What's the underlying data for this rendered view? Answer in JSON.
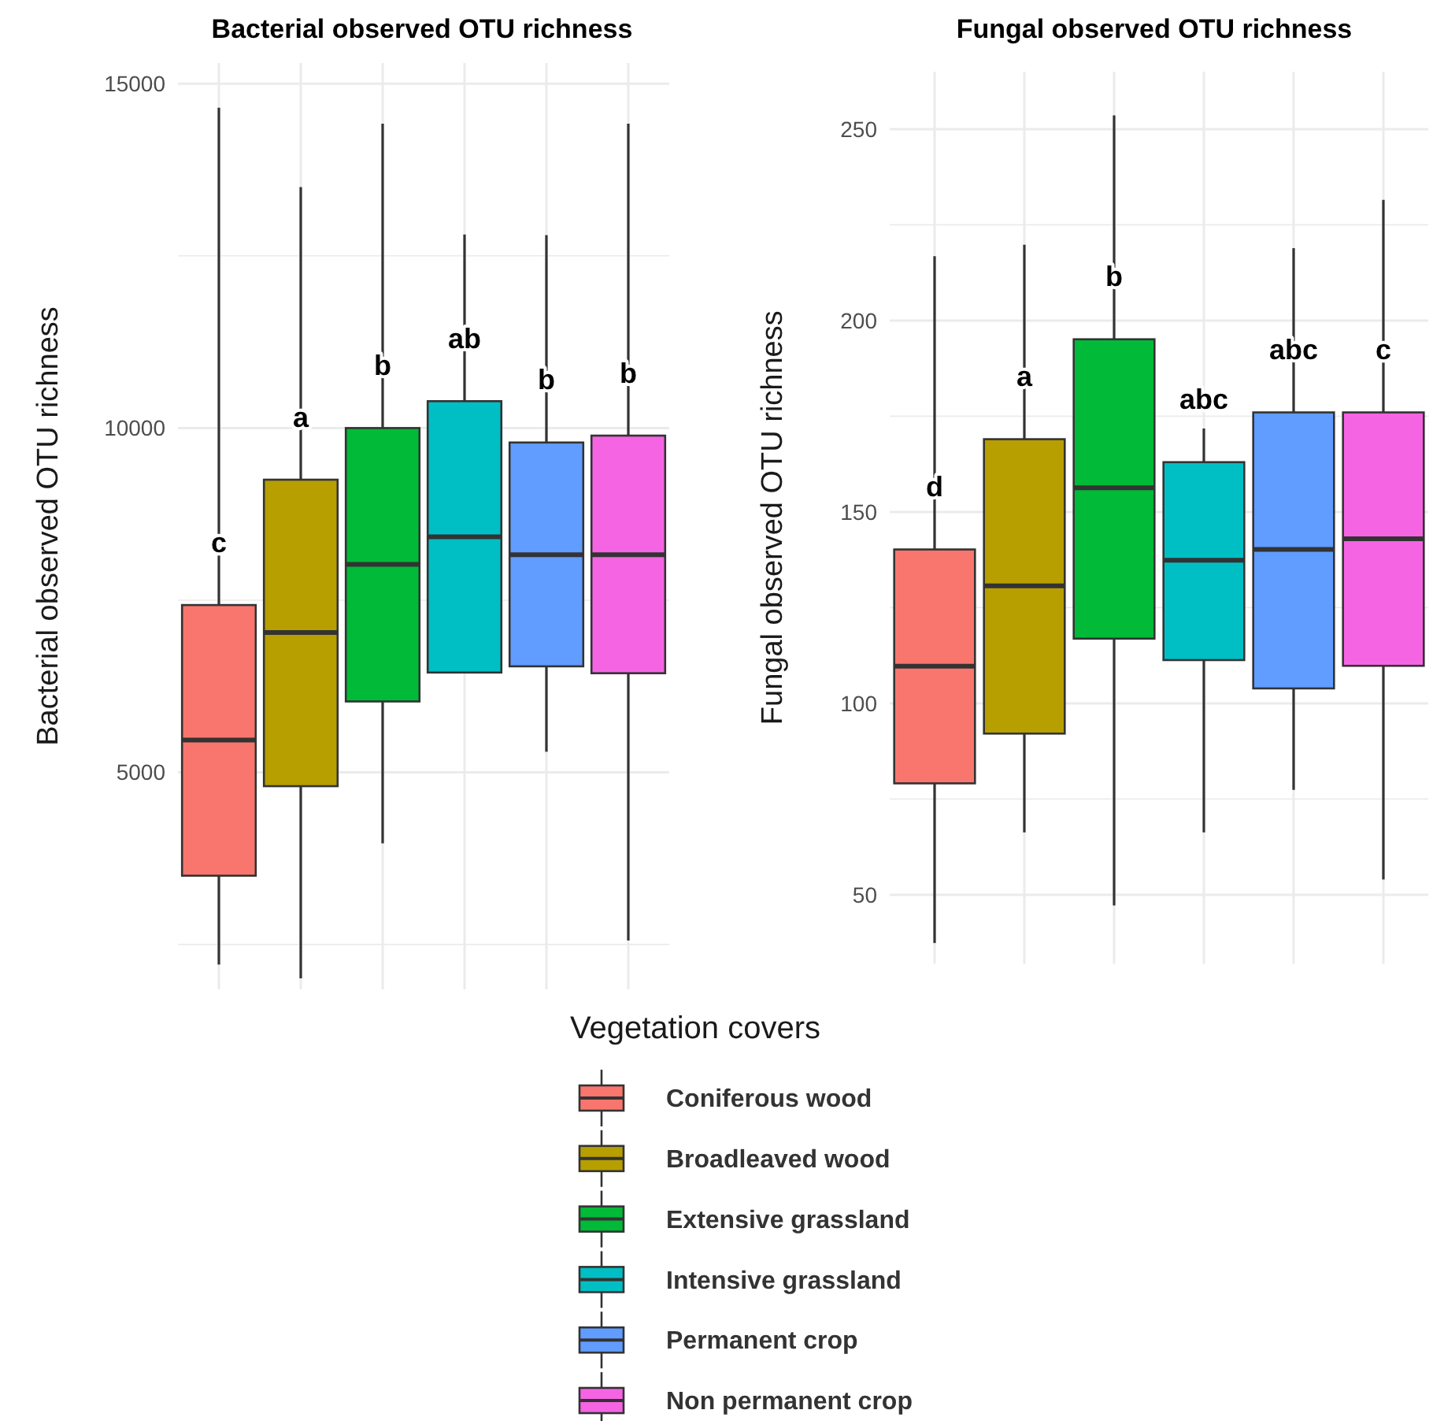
{
  "chart_data": [
    {
      "type": "box",
      "title": "Bacterial observed OTU richness",
      "ylabel": "Bacterial observed OTU richness",
      "legend_title": "Vegetation covers",
      "legend": "bottom",
      "grid": true,
      "categories": [
        null,
        null,
        null,
        null,
        null,
        null
      ],
      "ylim": [
        1850,
        15300
      ],
      "yticks": [
        {
          "value": 2500,
          "label": null
        },
        5000,
        {
          "value": 7500,
          "label": null
        },
        10000,
        {
          "value": 12500,
          "label": null
        },
        15000
      ],
      "series": [
        {
          "name": "Coniferous wood",
          "color": "#f8766d",
          "boxes": [
            {
              "low": 2210,
              "q1": 3500,
              "median": 5470,
              "q3": 7430,
              "high": 14650
            },
            null,
            null,
            null,
            null,
            null
          ]
        },
        {
          "name": "Broadleaved wood",
          "color": "#b79f00",
          "boxes": [
            null,
            {
              "low": 2010,
              "q1": 4800,
              "median": 7030,
              "q3": 9250,
              "high": 13500
            },
            null,
            null,
            null,
            null
          ]
        },
        {
          "name": "Extensive grassland",
          "color": "#00ba38",
          "boxes": [
            null,
            null,
            {
              "low": 3970,
              "q1": 6030,
              "median": 8020,
              "q3": 10000,
              "high": 14420
            },
            null,
            null,
            null
          ]
        },
        {
          "name": "Intensive grassland",
          "color": "#00bfc4",
          "boxes": [
            null,
            null,
            null,
            {
              "low": 6450,
              "q1": 6450,
              "median": 8420,
              "q3": 10390,
              "high": 12810
            },
            null,
            null
          ]
        },
        {
          "name": "Permanent crop",
          "color": "#619cff",
          "boxes": [
            null,
            null,
            null,
            null,
            {
              "low": 5300,
              "q1": 6540,
              "median": 8160,
              "q3": 9790,
              "high": 12800
            },
            null
          ]
        },
        {
          "name": "Non permanent crop",
          "color": "#f564e3",
          "boxes": [
            null,
            null,
            null,
            null,
            null,
            {
              "low": 2560,
              "q1": 6440,
              "median": 8160,
              "q3": 9890,
              "high": 14420
            }
          ]
        }
      ],
      "annotations": [
        "c",
        "a",
        "b",
        "ab",
        "b",
        "b"
      ]
    },
    {
      "type": "box",
      "title": "Fungal observed OTU richness",
      "ylabel": "Fungal observed OTU richness",
      "legend": false,
      "grid": true,
      "categories": [
        null,
        null,
        null,
        null,
        null,
        null
      ],
      "ylim": [
        32,
        265
      ],
      "yticks": [
        50,
        {
          "value": 75,
          "label": null
        },
        100,
        {
          "value": 125,
          "label": null
        },
        150,
        {
          "value": 175,
          "label": null
        },
        200,
        {
          "value": 225,
          "label": null
        },
        250
      ],
      "series": [
        {
          "color": "#f8766d",
          "boxes": [
            {
              "low": 37.4,
              "q1": 79.1,
              "median": 109.7,
              "q3": 140.2,
              "high": 216.8
            },
            null,
            null,
            null,
            null,
            null
          ]
        },
        {
          "color": "#b79f00",
          "boxes": [
            null,
            {
              "low": 66.3,
              "q1": 92.1,
              "median": 130.7,
              "q3": 169,
              "high": 219.8
            },
            null,
            null,
            null,
            null
          ]
        },
        {
          "color": "#00ba38",
          "boxes": [
            null,
            null,
            {
              "low": 47.2,
              "q1": 116.9,
              "median": 156.3,
              "q3": 195.1,
              "high": 253.6
            },
            null,
            null,
            null
          ]
        },
        {
          "color": "#00bfc4",
          "boxes": [
            null,
            null,
            null,
            {
              "low": 66.3,
              "q1": 111.3,
              "median": 137.4,
              "q3": 163,
              "high": 171.8
            },
            null,
            null
          ]
        },
        {
          "color": "#619cff",
          "boxes": [
            null,
            null,
            null,
            null,
            {
              "low": 77.4,
              "q1": 103.9,
              "median": 140.2,
              "q3": 176,
              "high": 218.9
            },
            null
          ]
        },
        {
          "color": "#f564e3",
          "boxes": [
            null,
            null,
            null,
            null,
            null,
            {
              "low": 54,
              "q1": 109.8,
              "median": 143,
              "q3": 176,
              "high": 231.5
            }
          ]
        }
      ],
      "annotations": [
        "d",
        "a",
        "b",
        "abc",
        "abc",
        "c"
      ]
    }
  ]
}
